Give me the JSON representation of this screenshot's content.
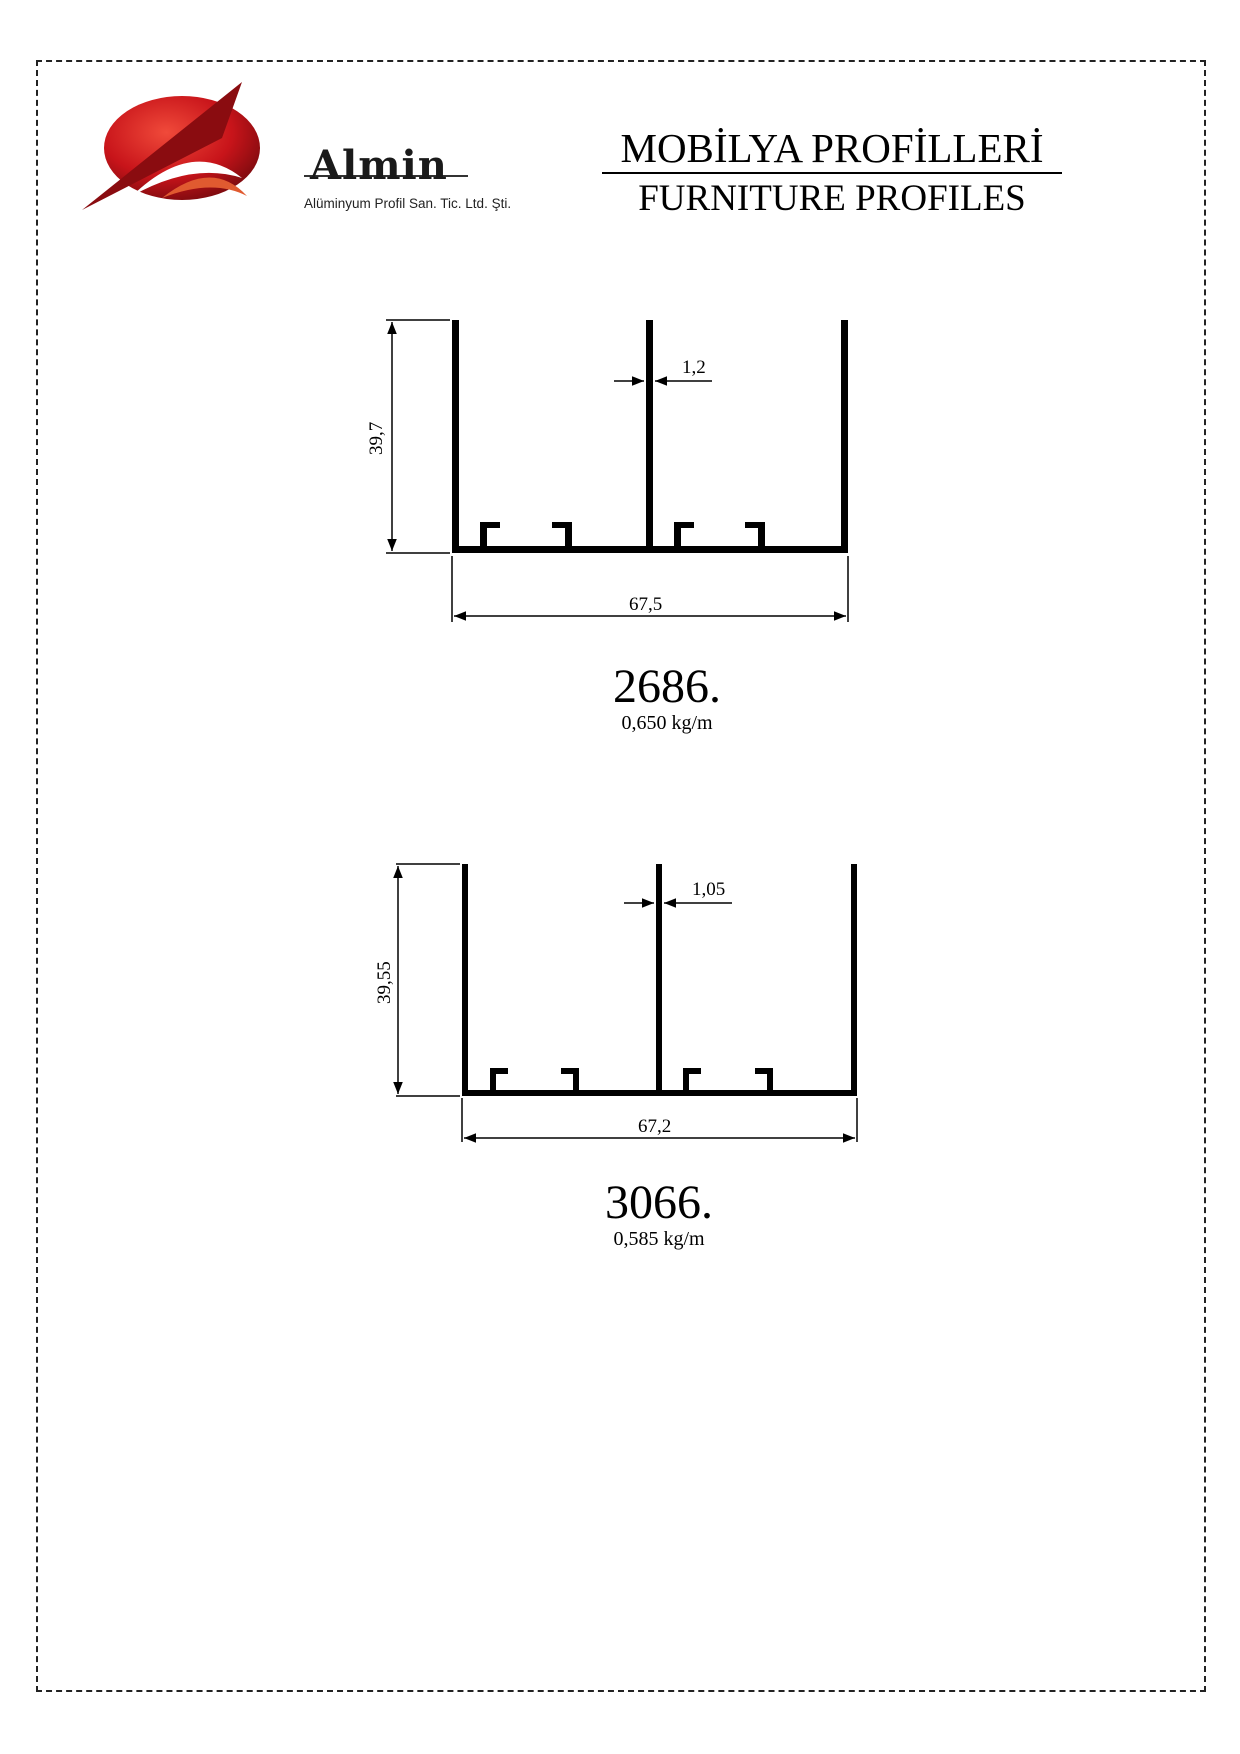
{
  "header": {
    "brand_name": "Almin",
    "brand_subtitle": "Alüminyum Profil San. Tic. Ltd. Şti.",
    "title_tr": "MOBİLYA PROFİLLERİ",
    "title_en": "FURNITURE PROFILES"
  },
  "profiles": [
    {
      "code": "2686.",
      "weight": "0,650 kg/m",
      "height_label": "39,7",
      "width_label": "67,5",
      "wall_label": "1,2"
    },
    {
      "code": "3066.",
      "weight": "0,585 kg/m",
      "height_label": "39,55",
      "width_label": "67,2",
      "wall_label": "1,05"
    }
  ]
}
